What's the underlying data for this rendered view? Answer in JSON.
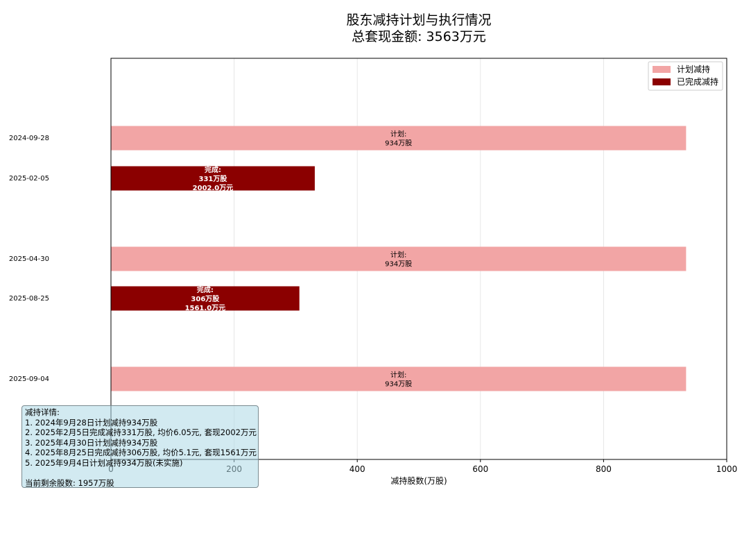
{
  "chart_data": {
    "type": "bar",
    "orientation": "horizontal",
    "title": "股东减持计划与执行情况",
    "subtitle": "总套现金额: 3563万元",
    "xlabel": "减持股数(万股)",
    "xlim": [
      0,
      1000
    ],
    "xticks": [
      0,
      200,
      400,
      600,
      800,
      1000
    ],
    "grid": true,
    "legend": {
      "placement": "top-right",
      "entries": [
        {
          "label": "计划减持",
          "color": "#f2a5a5"
        },
        {
          "label": "已完成减持",
          "color": "#8b0000"
        }
      ]
    },
    "rows": [
      {
        "date": "2024-09-28",
        "kind": "plan",
        "value": 934,
        "label_lines": [
          "计划:",
          "934万股"
        ]
      },
      {
        "date": "2025-02-05",
        "kind": "done",
        "value": 331,
        "label_lines": [
          "完成:",
          "331万股",
          "2002.0万元"
        ]
      },
      {
        "date": "2025-04-30",
        "kind": "plan",
        "value": 934,
        "label_lines": [
          "计划:",
          "934万股"
        ]
      },
      {
        "date": "2025-08-25",
        "kind": "done",
        "value": 306,
        "label_lines": [
          "完成:",
          "306万股",
          "1561.0万元"
        ]
      },
      {
        "date": "2025-09-04",
        "kind": "plan",
        "value": 934,
        "label_lines": [
          "计划:",
          "934万股"
        ]
      }
    ],
    "colors": {
      "plan": "#f2a5a5",
      "done": "#8b0000"
    }
  },
  "details_box": {
    "title": "减持详情:",
    "lines": [
      "1. 2024年9月28日计划减持934万股",
      "2. 2025年2月5日完成减持331万股, 均价6.05元, 套现2002万元",
      "3. 2025年4月30日计划减持934万股",
      "4. 2025年8月25日完成减持306万股, 均价5.1元, 套现1561万元",
      "5. 2025年9月4日计划减持934万股(未实施)"
    ],
    "remaining": "当前剩余股数: 1957万股"
  }
}
